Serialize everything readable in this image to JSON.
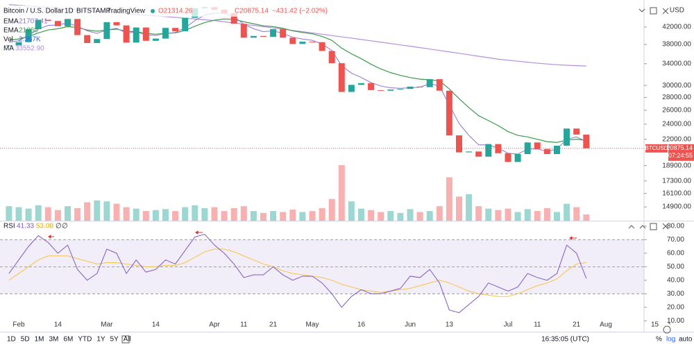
{
  "chart_data": [
    {
      "type": "candlestick",
      "title": "Bitcoin / U.S. Dollar",
      "interval": "1D",
      "exchange": "BITSTAMP",
      "source": "TradingView",
      "open_text": "O21314.26",
      "close_text": "C20875.14",
      "change_text": "−431.42 (−2.02%)",
      "currency": "USD",
      "symbol": "BTCUSD",
      "countdown": "07:24:55",
      "log_scale": true,
      "ylim": [
        13760,
        47540
      ],
      "yticks": [
        {
          "value": 14900,
          "label": "14900.00"
        },
        {
          "value": 16100,
          "label": "16100.00"
        },
        {
          "value": 17300,
          "label": "17300.00"
        },
        {
          "value": 18900,
          "label": "18900.00"
        },
        {
          "value": 22000,
          "label": "22000.00"
        },
        {
          "value": 24000,
          "label": "24000.00"
        },
        {
          "value": 26000,
          "label": "26000.00"
        },
        {
          "value": 28000,
          "label": "28000.00"
        },
        {
          "value": 30000,
          "label": "30000.00"
        },
        {
          "value": 34000,
          "label": "34000.00"
        },
        {
          "value": 38000,
          "label": "38000.00"
        },
        {
          "value": 42000,
          "label": "42000.00"
        }
      ],
      "categories": [
        null,
        "Feb",
        null,
        null,
        null,
        "14",
        null,
        null,
        null,
        null,
        "Mar",
        null,
        null,
        null,
        null,
        "14",
        null,
        null,
        null,
        null,
        null,
        "Apr",
        null,
        null,
        "11",
        null,
        null,
        "21",
        null,
        null,
        null,
        "May",
        null,
        null,
        null,
        null,
        "16",
        null,
        null,
        null,
        null,
        "Jun",
        null,
        null,
        null,
        "13",
        null,
        null,
        null,
        null,
        null,
        "Jul",
        null,
        null,
        "11",
        null,
        null,
        null,
        "21",
        null,
        null,
        "Aug",
        null,
        null,
        null,
        null,
        "15"
      ],
      "series": [
        {
          "name": "BTCUSD",
          "up_color": "#26a69a",
          "down_color": "#ef5350",
          "last_label": "20875.14",
          "values": [
            37800,
            38500,
            41500,
            43800,
            43500,
            42200,
            44000,
            40100,
            38300,
            39200,
            43200,
            42400,
            38400,
            41900,
            38800,
            39300,
            41800,
            41000,
            44300,
            46800,
            47100,
            46400,
            45500,
            42800,
            39500,
            39900,
            39700,
            41500,
            39500,
            38100,
            38600,
            38500,
            36600,
            34100,
            28900,
            30100,
            30400,
            29200,
            29100,
            29300,
            29400,
            29800,
            29700,
            31100,
            29100,
            22500,
            20400,
            20500,
            19900,
            21400,
            20300,
            19300,
            20200,
            21600,
            20800,
            20200,
            21200,
            23400,
            22600,
            20875.14,
            null,
            null,
            null,
            null,
            null,
            null,
            null
          ]
        },
        {
          "name": "EMA",
          "color": "#8e6fd0",
          "values": [
            38500,
            38800,
            40000,
            41500,
            42400,
            42500,
            43000,
            42200,
            41100,
            40500,
            41300,
            41700,
            40600,
            40800,
            40200,
            40000,
            40500,
            40700,
            41800,
            43600,
            45000,
            45500,
            45500,
            44600,
            42700,
            41600,
            40900,
            41100,
            40500,
            39600,
            39200,
            38900,
            38100,
            36700,
            33600,
            32200,
            31400,
            30500,
            29900,
            29600,
            29500,
            29600,
            29700,
            30300,
            29900,
            26800,
            24100,
            22500,
            21300,
            21300,
            20900,
            20300,
            20200,
            20800,
            20800,
            20500,
            20800,
            22000,
            22300,
            21707.41,
            null,
            null,
            null,
            null,
            null,
            null,
            null
          ]
        },
        {
          "name": "EMA",
          "color": "#3d9a4a",
          "values": [
            39000,
            39200,
            39800,
            40600,
            41300,
            41600,
            42100,
            41900,
            41300,
            41000,
            41300,
            41500,
            41000,
            40900,
            40500,
            40300,
            40500,
            40600,
            41200,
            42200,
            43100,
            43700,
            44000,
            43900,
            43300,
            42800,
            42300,
            42100,
            41700,
            41100,
            40700,
            40400,
            39800,
            38900,
            37200,
            36000,
            35000,
            33900,
            33000,
            32300,
            31800,
            31400,
            31100,
            31000,
            30800,
            29400,
            27800,
            26400,
            25200,
            24500,
            23800,
            23000,
            22500,
            22300,
            22000,
            21700,
            21600,
            21900,
            22000,
            21860,
            null,
            null,
            null,
            null,
            null,
            null,
            null
          ]
        },
        {
          "name": "MA",
          "color": "#b48ee0",
          "legend": "33552.90",
          "values": [
            47800,
            47600,
            47400,
            47200,
            47000,
            46800,
            46600,
            46400,
            46200,
            46000,
            45800,
            45600,
            45400,
            45200,
            45000,
            44800,
            44600,
            44400,
            44200,
            44000,
            43800,
            43600,
            43300,
            43000,
            42700,
            42400,
            42100,
            41800,
            41500,
            41200,
            40900,
            40600,
            40300,
            40000,
            39700,
            39400,
            39100,
            38800,
            38500,
            38200,
            37900,
            37600,
            37300,
            37000,
            36700,
            36400,
            36100,
            35800,
            35500,
            35200,
            34900,
            34700,
            34500,
            34300,
            34100,
            33950,
            33800,
            33700,
            33620,
            33552.9,
            null,
            null,
            null,
            null,
            null,
            null,
            null
          ]
        }
      ],
      "volume": {
        "name": "Vol",
        "legend": "2.267K",
        "values": [
          3,
          2.8,
          2.5,
          3.2,
          2.8,
          2.2,
          3,
          2.6,
          3.8,
          4.2,
          4,
          3.5,
          2.8,
          2.5,
          2,
          2.2,
          2.4,
          2,
          2.8,
          3.2,
          2.6,
          2.8,
          2,
          2.6,
          3,
          2,
          1.6,
          2,
          1.8,
          2.3,
          1.8,
          2,
          2.6,
          4.5,
          11.5,
          4,
          2.5,
          2.2,
          1.8,
          2,
          1.6,
          2.4,
          1.8,
          2,
          3,
          9,
          5,
          5.5,
          3,
          2.5,
          2.2,
          2.5,
          1.8,
          2.4,
          2,
          2.6,
          1.8,
          3.5,
          2.8,
          1.3,
          null,
          null,
          null,
          null,
          null,
          null,
          null
        ]
      }
    },
    {
      "type": "line",
      "title": "RSI",
      "legend_extra": [
        "∅",
        "∅"
      ],
      "ylim": [
        5,
        82
      ],
      "yticks": [
        {
          "value": 10,
          "label": "10.00"
        },
        {
          "value": 20,
          "label": "20.00"
        },
        {
          "value": 30,
          "label": "30.00"
        },
        {
          "value": 40,
          "label": "40.00"
        },
        {
          "value": 50,
          "label": "50.00"
        },
        {
          "value": 60,
          "label": "60.00"
        },
        {
          "value": 70,
          "label": "70.00"
        },
        {
          "value": 80,
          "label": "80.00"
        }
      ],
      "levels": [
        70,
        50,
        30
      ],
      "series": [
        {
          "color": "#7e57c2",
          "values": [
            45,
            55,
            65,
            73,
            68,
            60,
            66,
            48,
            40,
            45,
            63,
            60,
            45,
            55,
            46,
            48,
            55,
            52,
            62,
            72,
            74,
            66,
            60,
            52,
            42,
            44,
            44,
            50,
            44,
            40,
            43,
            43,
            38,
            30,
            20,
            28,
            33,
            30,
            30,
            32,
            34,
            43,
            42,
            48,
            38,
            18,
            16,
            22,
            28,
            38,
            35,
            32,
            35,
            45,
            42,
            40,
            45,
            66,
            60,
            41.33,
            null,
            null,
            null,
            null,
            null,
            null,
            null
          ]
        },
        {
          "color": "#f5c342",
          "values": [
            40,
            45,
            50,
            55,
            58,
            58,
            58,
            56,
            54,
            52,
            53,
            53,
            52,
            51,
            50,
            50,
            51,
            51,
            53,
            57,
            61,
            63,
            63,
            61,
            58,
            55,
            52,
            50,
            47,
            45,
            44,
            43,
            42,
            40,
            37,
            35,
            33,
            32,
            31,
            32,
            33,
            34,
            36,
            38,
            40,
            38,
            35,
            32,
            30,
            29,
            28,
            28,
            30,
            33,
            36,
            38,
            41,
            47,
            52,
            53.08,
            null,
            null,
            null,
            null,
            null,
            null,
            null
          ]
        }
      ]
    },
    {
      "ranges": [
        "1D",
        "5D",
        "1M",
        "3M",
        "6M",
        "YTD",
        "1Y",
        "5Y",
        "All"
      ],
      "clock": "16:35:05 (UTC)",
      "percent": "%",
      "log": "log",
      "auto": "auto"
    }
  ]
}
